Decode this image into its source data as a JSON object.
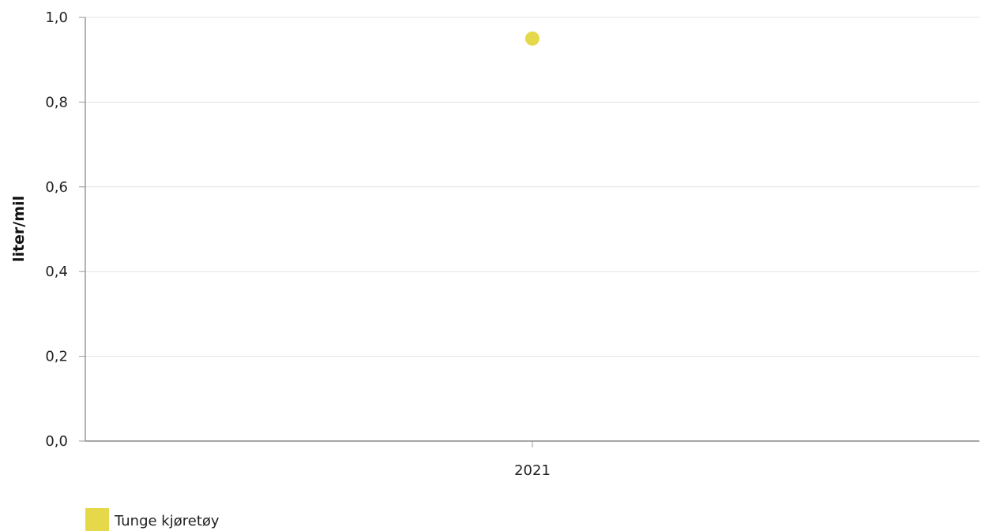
{
  "chart_data": {
    "type": "scatter",
    "categories": [
      "2021"
    ],
    "series": [
      {
        "name": "Tunge kjøretøy",
        "values": [
          0.95
        ],
        "color": "#e5d84a"
      }
    ],
    "title": "",
    "xlabel": "",
    "ylabel": "liter/mil",
    "ylim": [
      0,
      1.0
    ],
    "yticks": [
      "0,0",
      "0,2",
      "0,4",
      "0,6",
      "0,8",
      "1,0"
    ],
    "grid": true,
    "legend_position": "bottom-left"
  }
}
